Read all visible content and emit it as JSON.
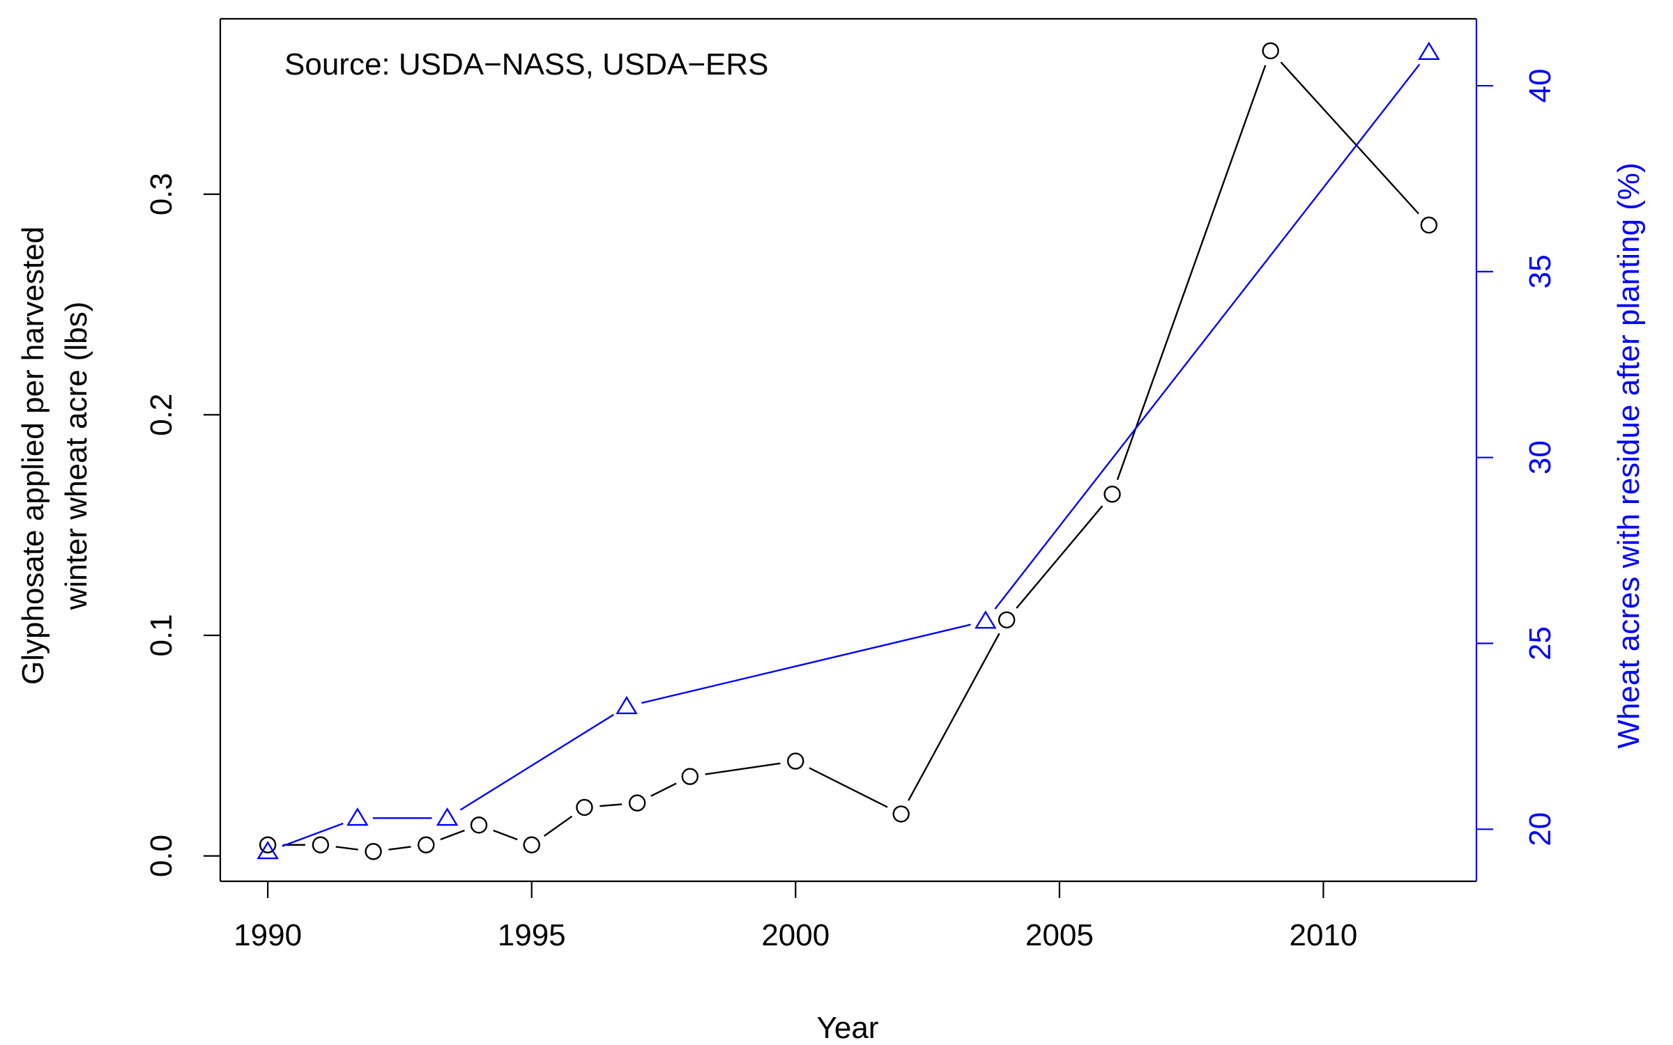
{
  "chart_data": {
    "type": "line",
    "source_note": "Source: USDA−NASS, USDA−ERS",
    "xlabel": "Year",
    "ylabel_left_line1": "Glyphosate applied per harvested",
    "ylabel_left_line2": "winter wheat acre (lbs)",
    "ylabel_right": "Wheat acres with residue after planting (%)",
    "xlim": [
      1989.1,
      2012.9
    ],
    "ylim_left": [
      -0.0115,
      0.3795
    ],
    "ylim_right": [
      18.6,
      41.8
    ],
    "x_ticks": [
      1990,
      1995,
      2000,
      2005,
      2010
    ],
    "y_left_ticks": [
      {
        "value": 0.0,
        "label": "0.0"
      },
      {
        "value": 0.1,
        "label": "0.1"
      },
      {
        "value": 0.2,
        "label": "0.2"
      },
      {
        "value": 0.3,
        "label": "0.3"
      }
    ],
    "y_right_ticks": [
      {
        "value": 20,
        "label": "20"
      },
      {
        "value": 25,
        "label": "25"
      },
      {
        "value": 30,
        "label": "30"
      },
      {
        "value": 35,
        "label": "35"
      },
      {
        "value": 40,
        "label": "40"
      }
    ],
    "series": [
      {
        "axis": "left",
        "color": "#000000",
        "marker": "circle",
        "points": [
          {
            "x": 1990,
            "y": 0.005
          },
          {
            "x": 1991,
            "y": 0.005
          },
          {
            "x": 1992,
            "y": 0.002
          },
          {
            "x": 1993,
            "y": 0.005
          },
          {
            "x": 1994,
            "y": 0.014
          },
          {
            "x": 1995,
            "y": 0.005
          },
          {
            "x": 1996,
            "y": 0.022
          },
          {
            "x": 1997,
            "y": 0.024
          },
          {
            "x": 1998,
            "y": 0.036
          },
          {
            "x": 2000,
            "y": 0.043
          },
          {
            "x": 2002,
            "y": 0.019
          },
          {
            "x": 2004,
            "y": 0.107
          },
          {
            "x": 2006,
            "y": 0.164
          },
          {
            "x": 2009,
            "y": 0.365
          },
          {
            "x": 2012,
            "y": 0.286
          }
        ]
      },
      {
        "axis": "right",
        "color": "#0000ff",
        "marker": "triangle",
        "points": [
          {
            "x": 1990,
            "y": 19.4
          },
          {
            "x": 1991.7,
            "y": 20.3
          },
          {
            "x": 1993.4,
            "y": 20.3
          },
          {
            "x": 1996.8,
            "y": 23.3
          },
          {
            "x": 2003.6,
            "y": 25.6
          },
          {
            "x": 2012,
            "y": 40.9
          }
        ]
      }
    ]
  }
}
